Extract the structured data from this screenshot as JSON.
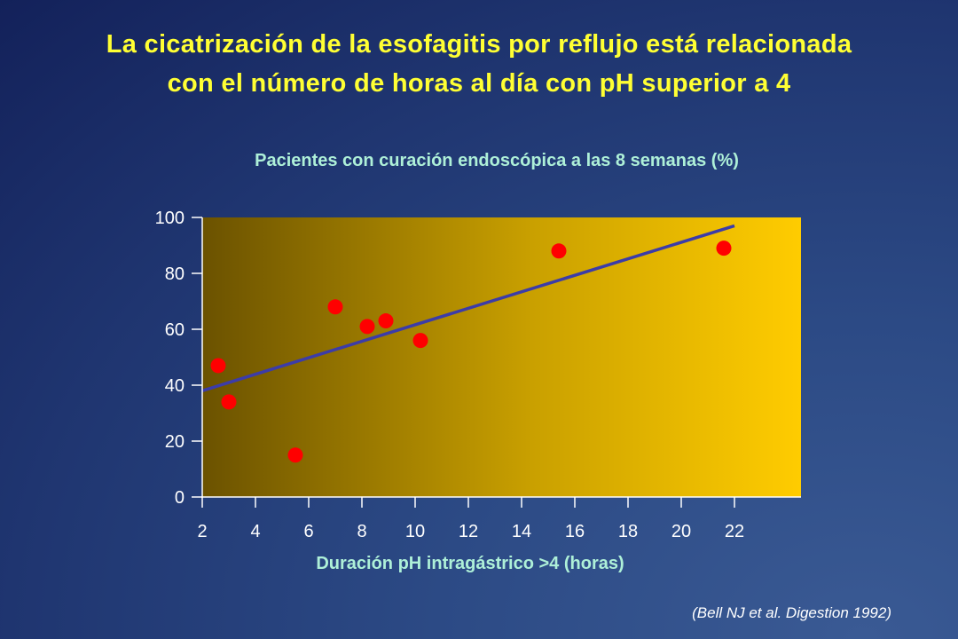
{
  "slide": {
    "title_line1": "La cicatrización de la esofagitis por reflujo está relacionada",
    "title_line2": "con el número de horas al día con pH superior a 4",
    "source": "(Bell NJ et al. Digestion 1992)"
  },
  "chart_data": {
    "type": "scatter",
    "title": "Pacientes con curación endoscópica a las 8 semanas (%)",
    "xlabel": "Duración pH intragástrico >4 (horas)",
    "ylabel": "",
    "xlim": [
      2,
      24.5
    ],
    "ylim": [
      0,
      100
    ],
    "x_ticks": [
      2,
      4,
      6,
      8,
      10,
      12,
      14,
      16,
      18,
      20,
      22
    ],
    "y_ticks": [
      0,
      20,
      40,
      60,
      80,
      100
    ],
    "points": [
      {
        "x": 2.6,
        "y": 47
      },
      {
        "x": 3.0,
        "y": 34
      },
      {
        "x": 5.5,
        "y": 15
      },
      {
        "x": 7.0,
        "y": 68
      },
      {
        "x": 8.2,
        "y": 61
      },
      {
        "x": 8.9,
        "y": 63
      },
      {
        "x": 10.2,
        "y": 56
      },
      {
        "x": 15.4,
        "y": 88
      },
      {
        "x": 21.6,
        "y": 89
      }
    ],
    "trendline": {
      "x": [
        2,
        22
      ],
      "y": [
        38,
        97
      ]
    },
    "colors": {
      "point": "#ff0000",
      "trendline": "#3c3ca8",
      "plot_bg_start": "#6b5200",
      "plot_bg_end": "#ffcc00",
      "axis": "#ffffff"
    }
  }
}
